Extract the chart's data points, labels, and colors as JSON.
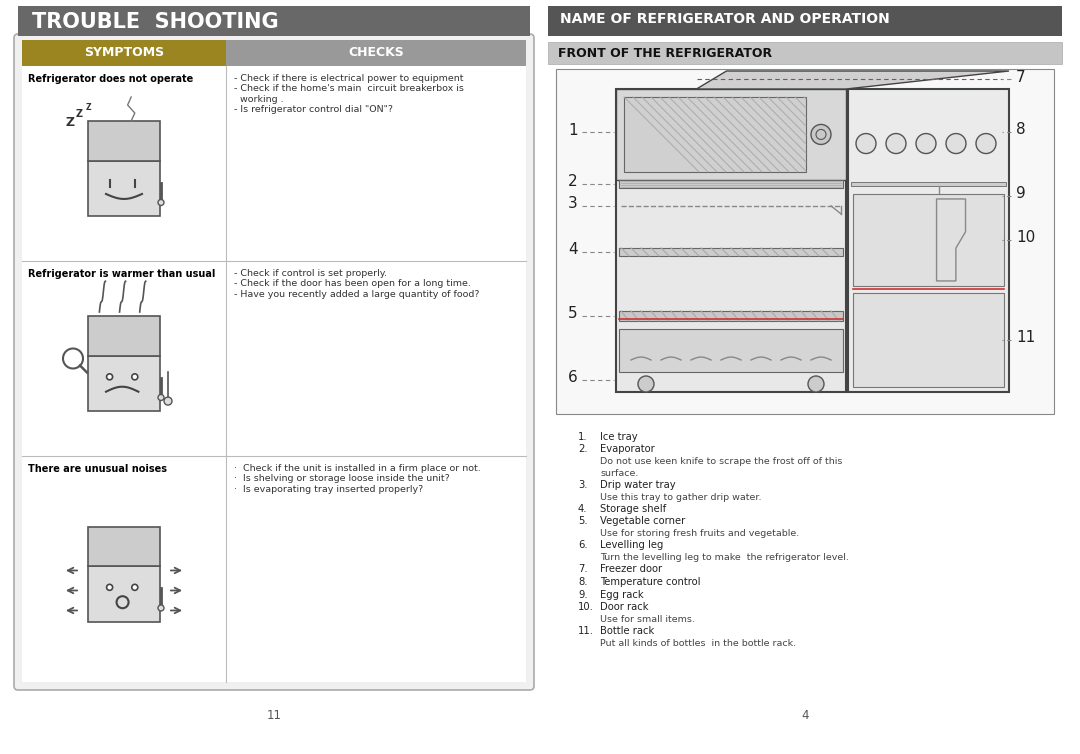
{
  "bg_color": "#ffffff",
  "left_title": "TROUBLE  SHOOTING",
  "left_title_bg": "#666666",
  "left_title_color": "#ffffff",
  "right_title": "NAME OF REFRIGERATOR AND OPERATION",
  "right_title_bg": "#555555",
  "right_title_color": "#ffffff",
  "symptoms_header": "SYMPTOMS",
  "symptoms_header_bg": "#9a8520",
  "checks_header": "CHECKS",
  "checks_header_bg": "#999999",
  "front_header": "FRONT OF THE REFRIGERATOR",
  "front_header_bg": "#bbbbbb",
  "symptom1_title": "Refrigerator does not operate",
  "symptom1_checks": "- Check if there is electrical power to equipment\n- Check if the home's main  circuit breakerbox is\n  working .\n- Is refrigerator control dial \"ON\"?",
  "symptom2_title": "Refrigerator is warmer than usual",
  "symptom2_checks": "- Check if control is set properly.\n- Check if the door has been open for a long time.\n- Have you recently added a large quantity of food?",
  "symptom3_title": "There are unusual noises",
  "symptom3_checks": "·  Check if the unit is installed in a firm place or not.\n·  Is shelving or storage loose inside the unit?\n·  Is evaporating tray inserted properly?",
  "numbered_items": [
    {
      "num": "1.",
      "main": "Ice tray",
      "sub": ""
    },
    {
      "num": "2.",
      "main": "Evaporator",
      "sub": "Do not use keen knife to scrape the frost off of this\nsurface."
    },
    {
      "num": "3.",
      "main": "Drip water tray",
      "sub": "Use this tray to gather drip water."
    },
    {
      "num": "4.",
      "main": "Storage shelf",
      "sub": ""
    },
    {
      "num": "5.",
      "main": "Vegetable corner",
      "sub": "Use for storing fresh fruits and vegetable."
    },
    {
      "num": "6.",
      "main": "Levelling leg",
      "sub": "Turn the levelling leg to make  the refrigerator level."
    },
    {
      "num": "7.",
      "main": "Freezer door",
      "sub": ""
    },
    {
      "num": "8.",
      "main": "Temperature control",
      "sub": ""
    },
    {
      "num": "9.",
      "main": "Egg rack",
      "sub": ""
    },
    {
      "num": "10.",
      "main": "Door rack",
      "sub": "Use for small items."
    },
    {
      "num": "11.",
      "main": "Bottle rack",
      "sub": "Put all kinds of bottles  in the bottle rack."
    }
  ],
  "page_left": "11",
  "page_right": "4"
}
